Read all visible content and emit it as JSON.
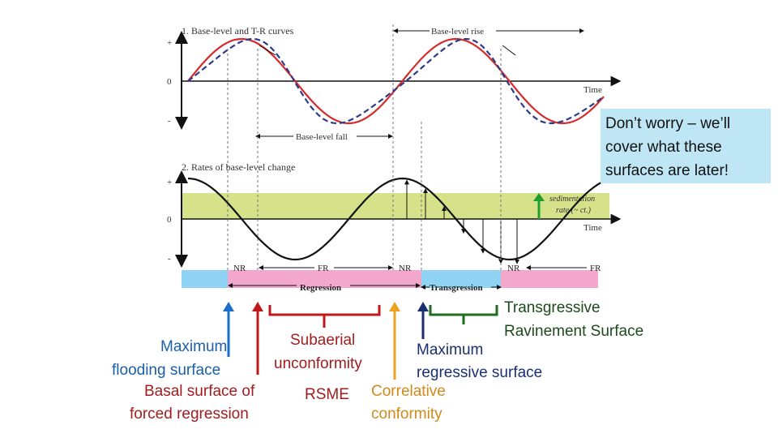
{
  "panel1": {
    "title": "1. Base-level and T-R curves",
    "y_plus": "+",
    "y_zero": "0",
    "y_minus": "-",
    "time_label": "Time",
    "rise_label": "Base-level rise",
    "fall_label": "Base-level fall"
  },
  "panel2": {
    "title": "2. Rates of base-level change",
    "y_plus": "+",
    "y_zero": "0",
    "y_minus": "-",
    "time_label": "Time",
    "sed_label_1": "sedimentation",
    "sed_label_2": "rate (~ ct.)"
  },
  "bar": {
    "nr1": "NR",
    "fr1": "FR",
    "nr2": "NR",
    "nr3": "NR",
    "fr2": "FR",
    "regression": "Regression",
    "transgression": "Transgression"
  },
  "callout": "Don’t worry – we’ll cover what these surfaces are later!",
  "labels": {
    "mfs_1": "Maximum",
    "mfs_2": "flooding surface",
    "bsfr_1": "Basal surface of",
    "bsfr_2": "forced regression",
    "su_1": "Subaerial",
    "su_2": "unconformity",
    "rsme": "RSME",
    "cc_1": "Correlative",
    "cc_2": "conformity",
    "mrs_1": "Maximum",
    "mrs_2": "regressive surface",
    "trs_1": "Transgressive",
    "trs_2": "Ravinement Surface"
  },
  "colors": {
    "red_curve": "#d62b2b",
    "dashed_curve": "#2e3a8c",
    "sed_band": "#d6e28a",
    "cyan_bar": "#8fd3f4",
    "pink_bar": "#f4a7cc",
    "arrow_blue": "#1a6fc9",
    "arrow_red": "#c01818",
    "arrow_orange": "#f0a020",
    "arrow_navy": "#1a2f72",
    "arrow_green": "#1e6e1e"
  }
}
